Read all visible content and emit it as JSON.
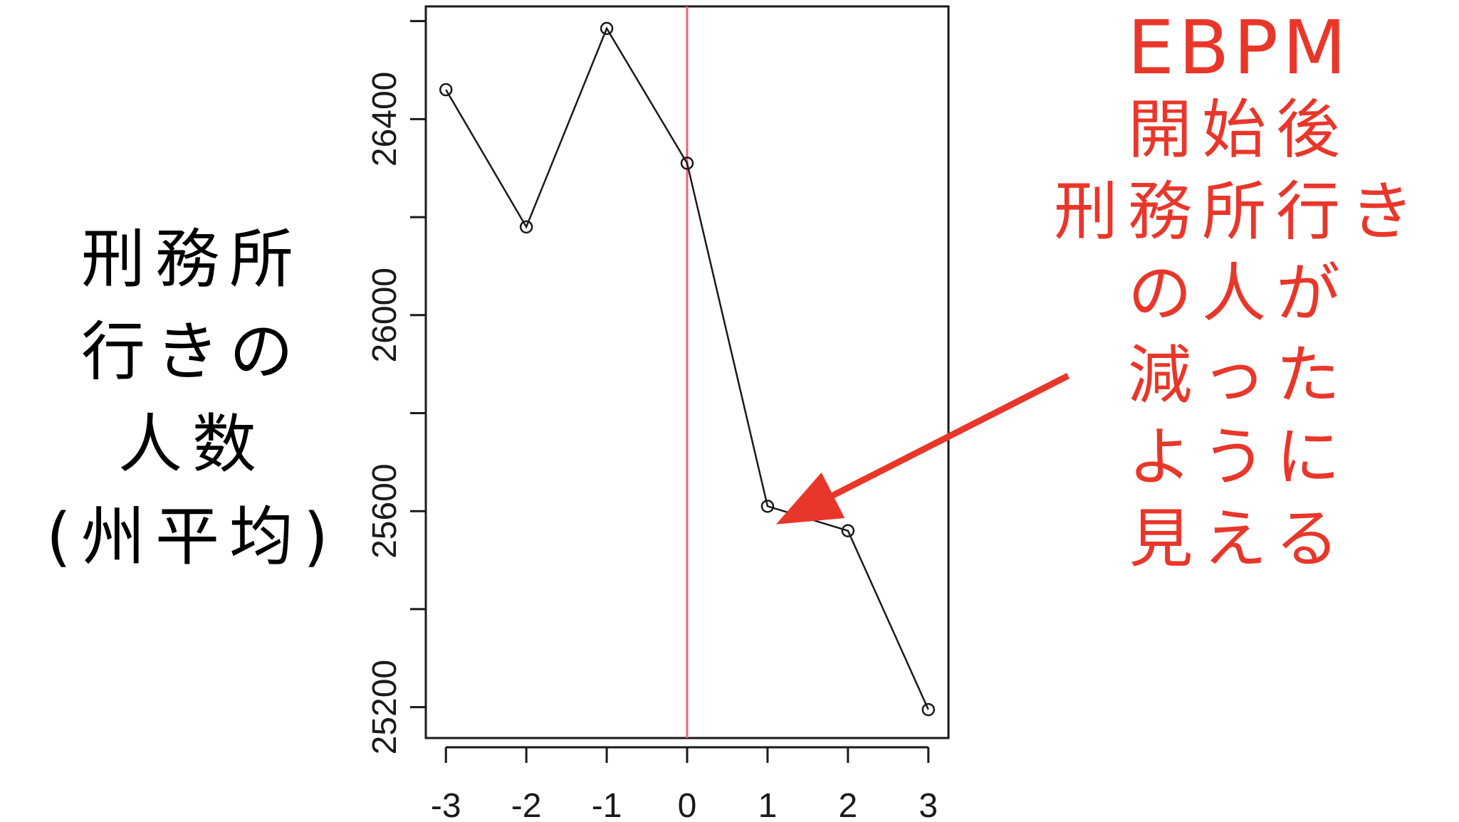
{
  "chart_data": {
    "type": "line",
    "x": [
      -3,
      -2,
      -1,
      0,
      1,
      2,
      3
    ],
    "values": [
      26460,
      26180,
      26585,
      26310,
      25610,
      25560,
      25195
    ],
    "xticks": [
      "-3",
      "-2",
      "-1",
      "0",
      "1",
      "2",
      "3"
    ],
    "yticks": [
      "25200",
      "25600",
      "26000",
      "26400"
    ],
    "ytick_values": [
      25200,
      25400,
      25600,
      25800,
      26000,
      26200,
      26400,
      26600
    ],
    "xlim": [
      -3.25,
      3.25
    ],
    "ylim": [
      25137,
      26630
    ],
    "vline_x": 0,
    "xlabel": "",
    "ylabel": "刑務所行きの人数(州平均)",
    "grid": false,
    "colors": {
      "line": "#1a1a1a",
      "vline": "#f0607a",
      "annotation": "#e8372a"
    }
  },
  "left_label": {
    "lines": [
      "刑務所",
      "行きの",
      "人数",
      "(州平均)"
    ]
  },
  "annotation": {
    "lines": [
      "EBPM",
      "開始後",
      "刑務所行き",
      "の人が",
      "減った",
      "ように",
      "見える"
    ]
  }
}
